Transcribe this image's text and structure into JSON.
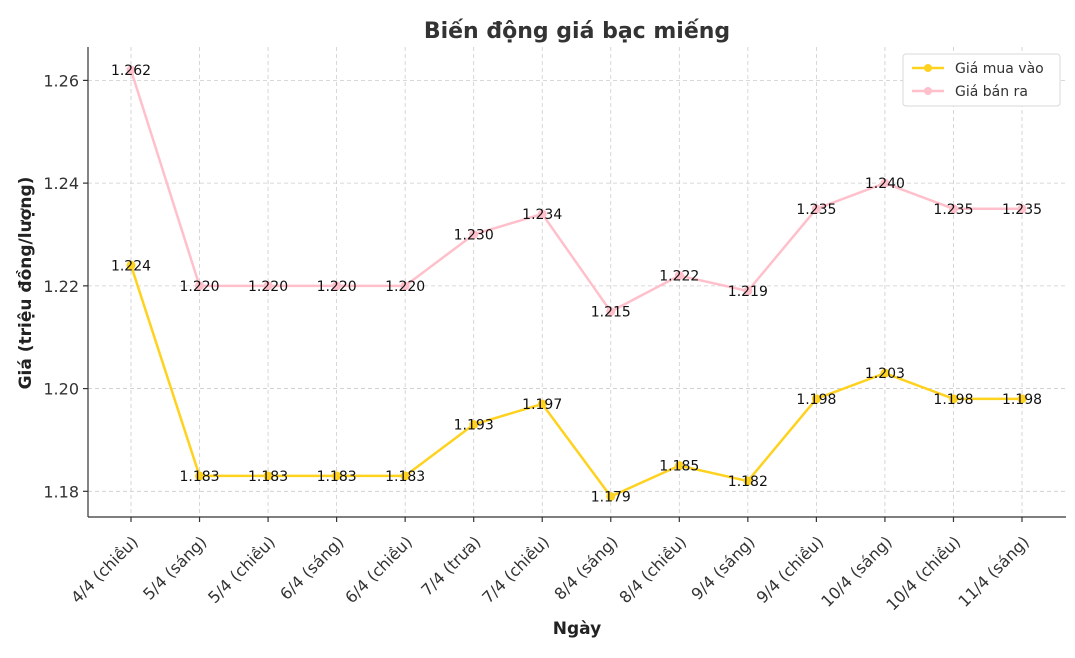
{
  "chart_data": {
    "type": "line",
    "title": "Biến động giá bạc miếng",
    "xlabel": "Ngày",
    "ylabel": "Giá (triệu đồng/lượng)",
    "categories": [
      "4/4 (chiều)",
      "5/4 (sáng)",
      "5/4 (chiều)",
      "6/4 (sáng)",
      "6/4 (chiều)",
      "7/4 (trưa)",
      "7/4 (chiều)",
      "8/4 (sáng)",
      "8/4 (chiều)",
      "9/4 (sáng)",
      "9/4 (chiều)",
      "10/4 (sáng)",
      "10/4 (chiều)",
      "11/4 (sáng)"
    ],
    "yticks": [
      "1.18",
      "1.20",
      "1.22",
      "1.24",
      "1.26"
    ],
    "ylim": [
      1.175,
      1.2665
    ],
    "grid": true,
    "legend_position": "top-right",
    "series": [
      {
        "name": "Giá mua vào",
        "color": "#FFD21F",
        "values": [
          1.224,
          1.183,
          1.183,
          1.183,
          1.183,
          1.193,
          1.197,
          1.179,
          1.185,
          1.182,
          1.198,
          1.203,
          1.198,
          1.198
        ],
        "labels": [
          "1.224",
          "1.183",
          "1.183",
          "1.183",
          "1.183",
          "1.193",
          "1.197",
          "1.179",
          "1.185",
          "1.182",
          "1.198",
          "1.203",
          "1.198",
          "1.198"
        ]
      },
      {
        "name": "Giá bán ra",
        "color": "#FFC0CB",
        "values": [
          1.262,
          1.22,
          1.22,
          1.22,
          1.22,
          1.23,
          1.234,
          1.215,
          1.222,
          1.219,
          1.235,
          1.24,
          1.235,
          1.235
        ],
        "labels": [
          "1.262",
          "1.220",
          "1.220",
          "1.220",
          "1.220",
          "1.230",
          "1.234",
          "1.215",
          "1.222",
          "1.219",
          "1.235",
          "1.240",
          "1.235",
          "1.235"
        ]
      }
    ]
  }
}
